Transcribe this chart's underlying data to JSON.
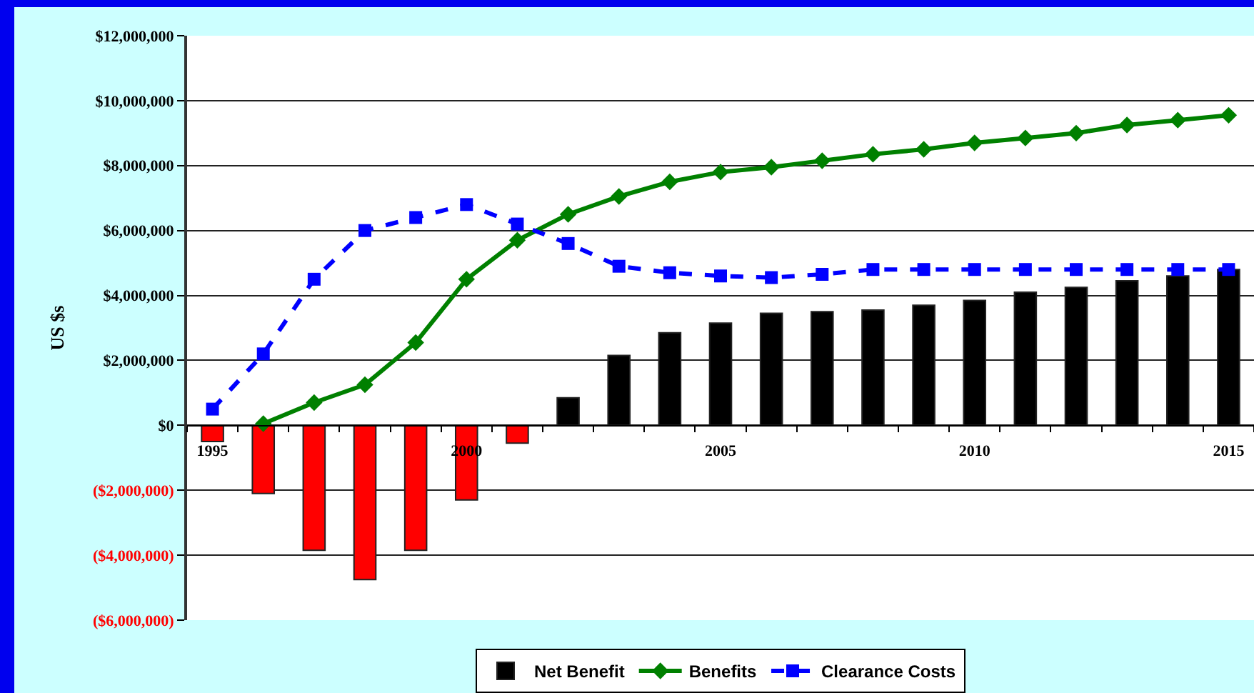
{
  "chart_data": {
    "type": "bar",
    "ylabel": "US $s",
    "categories": [
      "1995",
      null,
      null,
      null,
      null,
      "2000",
      null,
      null,
      null,
      null,
      "2005",
      null,
      null,
      null,
      null,
      "2010",
      null,
      null,
      null,
      null,
      "2015"
    ],
    "series": [
      {
        "name": "Net Benefit",
        "color": "#000000",
        "colors": [
          "#ff0000",
          "#ff0000",
          "#ff0000",
          "#ff0000",
          "#ff0000",
          "#ff0000",
          "#ff0000",
          "#000000",
          "#000000",
          "#000000",
          "#000000",
          "#000000",
          "#000000",
          "#000000",
          "#000000",
          "#000000",
          "#000000",
          "#000000",
          "#000000",
          "#000000",
          "#000000"
        ],
        "values": [
          -500000,
          -2100000,
          -3850000,
          -4750000,
          -3850000,
          -2300000,
          -550000,
          850000,
          2150000,
          2850000,
          3150000,
          3450000,
          3500000,
          3550000,
          3700000,
          3850000,
          4100000,
          4250000,
          4450000,
          4600000,
          4800000
        ]
      },
      {
        "name": "Benefits",
        "type": "line",
        "color": "#008000",
        "marker": "diamond",
        "line_style": "solid",
        "values": [
          null,
          50000,
          700000,
          1250000,
          2550000,
          4500000,
          5700000,
          6500000,
          7050000,
          7500000,
          7800000,
          7950000,
          8150000,
          8350000,
          8500000,
          8700000,
          8850000,
          9000000,
          9250000,
          9400000,
          9550000
        ]
      },
      {
        "name": "Clearance Costs",
        "type": "line",
        "color": "#0000ff",
        "marker": "square",
        "line_style": "dashed",
        "values": [
          500000,
          2200000,
          4500000,
          6000000,
          6400000,
          6800000,
          6200000,
          5600000,
          4900000,
          4700000,
          4600000,
          4550000,
          4650000,
          4800000,
          4800000,
          4800000,
          4800000,
          4800000,
          4800000,
          4800000,
          4800000
        ]
      }
    ],
    "ylim": [
      -6000000,
      12000000
    ],
    "yticks": [
      {
        "value": -6000000,
        "label": "($6,000,000)"
      },
      {
        "value": -4000000,
        "label": "($4,000,000)"
      },
      {
        "value": -2000000,
        "label": "($2,000,000)"
      },
      {
        "value": 0,
        "label": "$0"
      },
      {
        "value": 2000000,
        "label": "$2,000,000"
      },
      {
        "value": 4000000,
        "label": "$4,000,000"
      },
      {
        "value": 6000000,
        "label": "$6,000,000"
      },
      {
        "value": 8000000,
        "label": "$8,000,000"
      },
      {
        "value": 10000000,
        "label": "$10,000,000"
      },
      {
        "value": 12000000,
        "label": "$12,000,000"
      }
    ],
    "grid": "y",
    "legend": "bottom"
  }
}
